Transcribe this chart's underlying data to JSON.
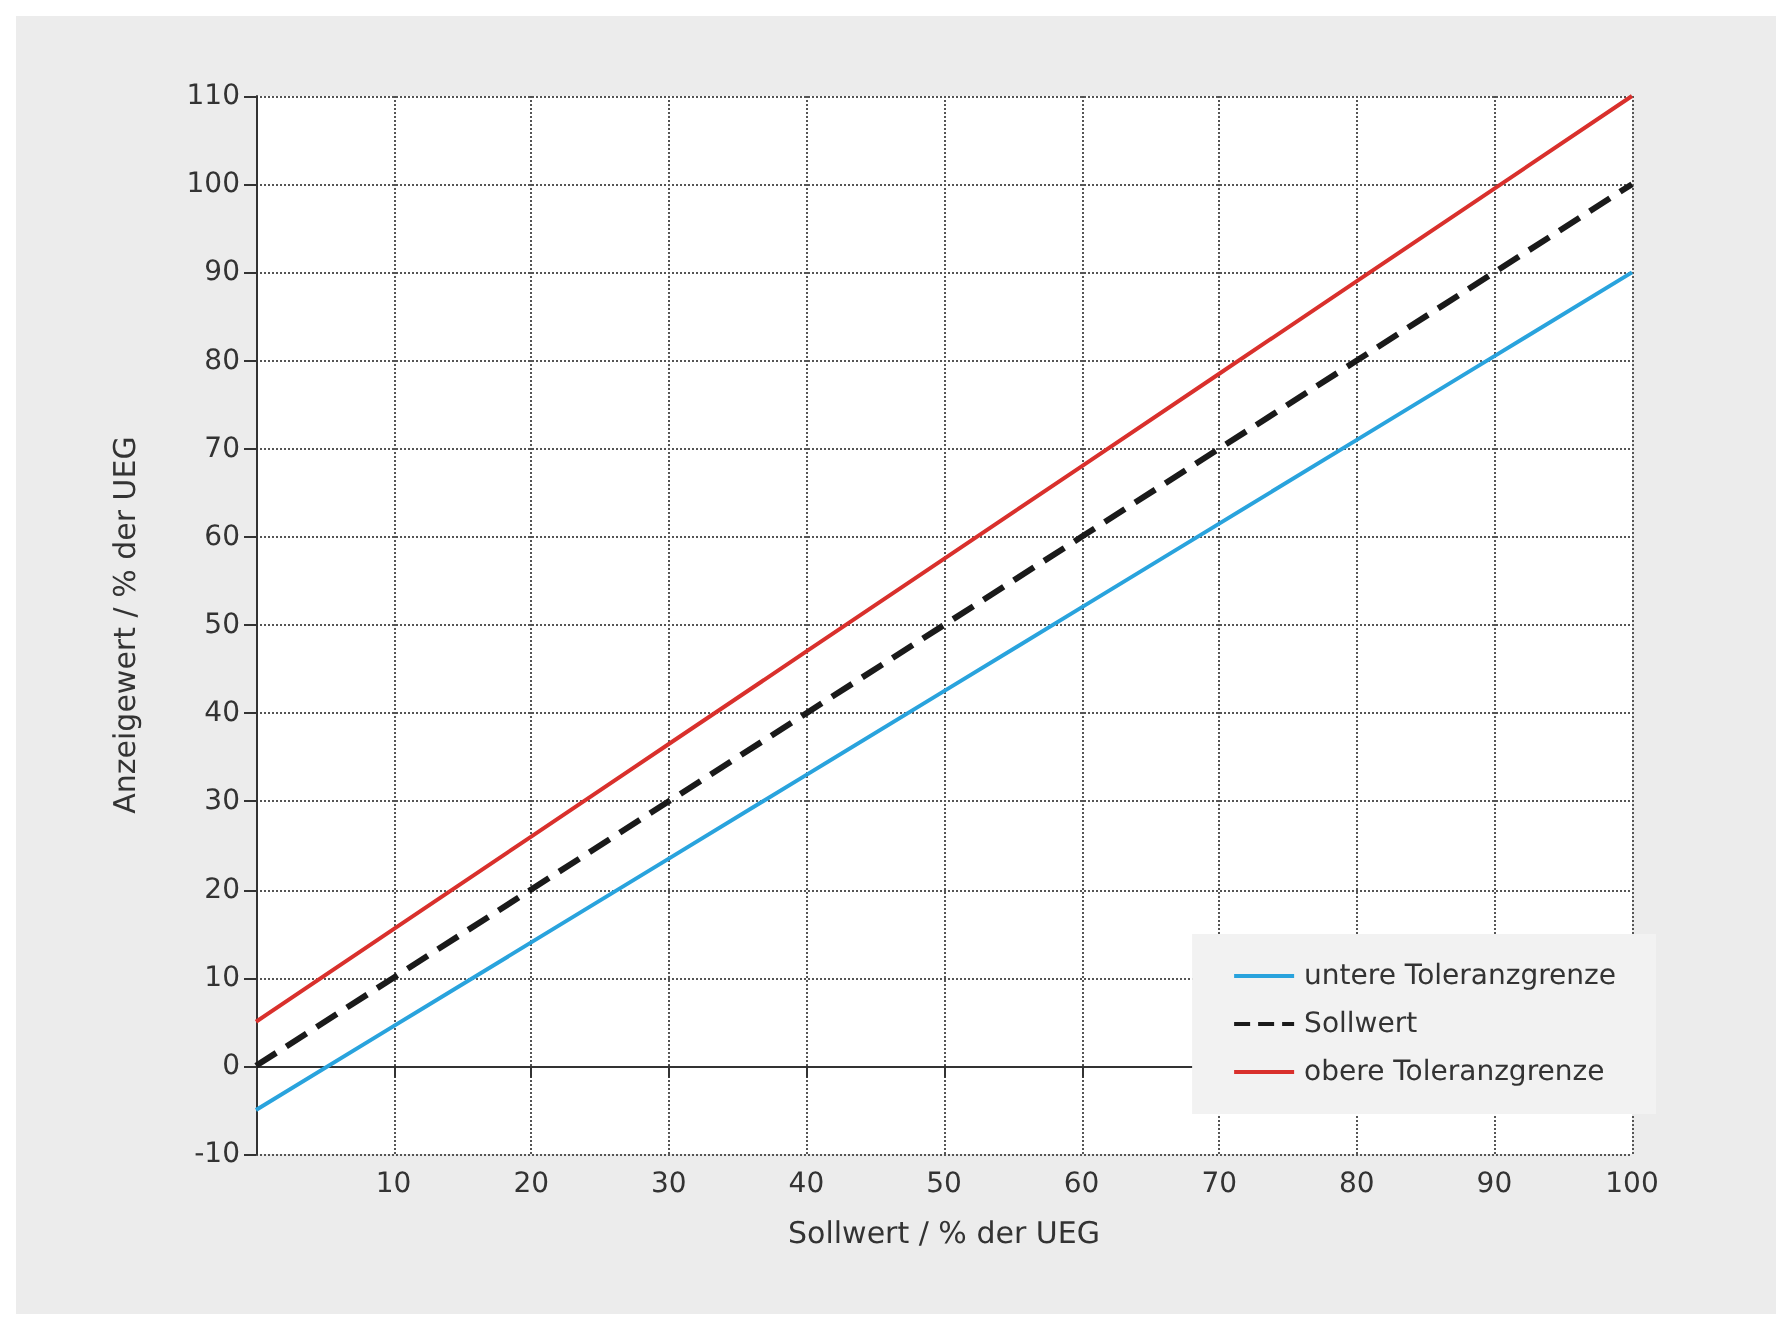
{
  "chart_data": {
    "type": "line",
    "xlabel": "Sollwert / % der UEG",
    "ylabel": "Anzeigewert / % der UEG",
    "xlim": [
      0,
      100
    ],
    "ylim": [
      -10,
      110
    ],
    "xticks": [
      {
        "value": 0,
        "label": null
      },
      10,
      20,
      30,
      40,
      50,
      60,
      70,
      80,
      90,
      100
    ],
    "yticks": [
      -10,
      0,
      10,
      20,
      30,
      40,
      50,
      60,
      70,
      80,
      90,
      100,
      110
    ],
    "grid": true,
    "legend": "bottom right",
    "marker": "none",
    "series": [
      {
        "name": "untere Toleranzgrenze",
        "color": "#29a3dd",
        "x": [
          0,
          10,
          20,
          30,
          40,
          50,
          60,
          70,
          80,
          90,
          100
        ],
        "values": [
          -5,
          4.5,
          14,
          23.5,
          33,
          42.5,
          52,
          61.5,
          71,
          80.5,
          90
        ],
        "line_style": "solid"
      },
      {
        "name": "Sollwert",
        "color": "#1a1a1a",
        "x": [
          0,
          10,
          20,
          30,
          40,
          50,
          60,
          70,
          80,
          90,
          100
        ],
        "values": [
          0,
          10,
          20,
          30,
          40,
          50,
          60,
          70,
          80,
          90,
          100
        ],
        "line_style": "dashed"
      },
      {
        "name": "obere Toleranzgrenze",
        "color": "#d9302c",
        "x": [
          0,
          10,
          20,
          30,
          40,
          50,
          60,
          70,
          80,
          90,
          100
        ],
        "values": [
          5,
          15.5,
          26,
          36.5,
          47,
          57.5,
          68,
          78.5,
          89,
          99.5,
          110
        ],
        "line_style": "solid"
      }
    ]
  }
}
